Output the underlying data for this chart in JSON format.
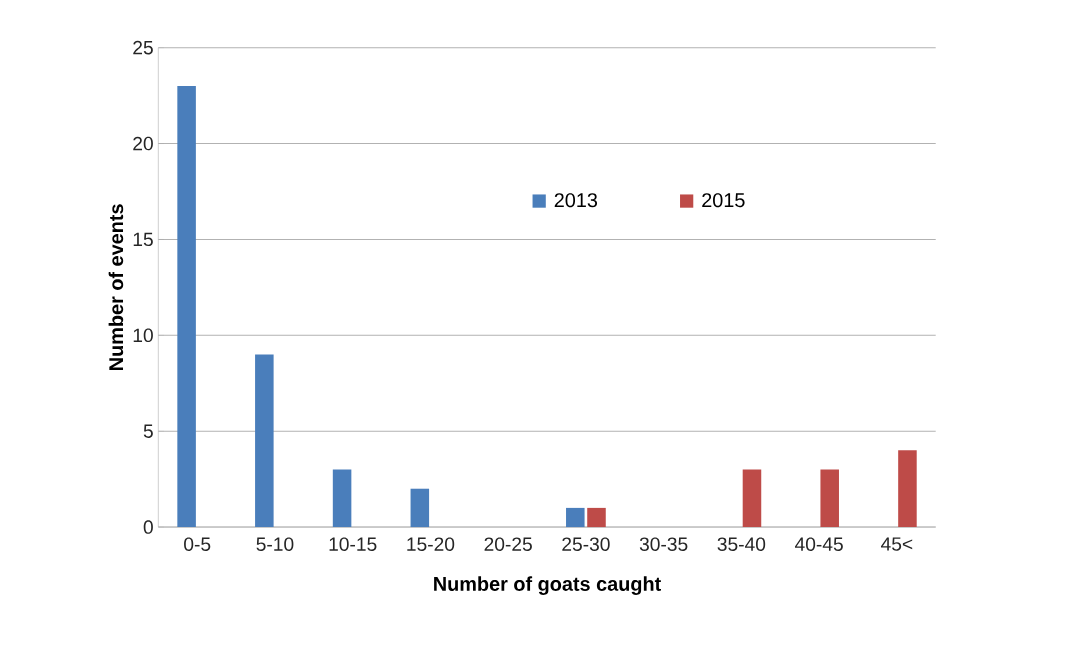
{
  "chart_data": {
    "type": "bar",
    "xlabel": "Number of goats caught",
    "ylabel": "Number of events",
    "categories": [
      "0-5",
      "5-10",
      "10-15",
      "15-20",
      "20-25",
      "25-30",
      "30-35",
      "35-40",
      "40-45",
      "45<"
    ],
    "series": [
      {
        "name": "2013",
        "color": "#4a7ebb",
        "values": [
          23,
          9,
          3,
          2,
          0,
          1,
          0,
          0,
          0,
          0
        ]
      },
      {
        "name": "2015",
        "color": "#be4b48",
        "values": [
          0,
          0,
          0,
          0,
          0,
          1,
          0,
          3,
          3,
          4
        ]
      }
    ],
    "ylim": [
      0,
      25
    ],
    "yticks": [
      0,
      5,
      10,
      15,
      20,
      25
    ],
    "grid": "y",
    "legend": "top"
  }
}
